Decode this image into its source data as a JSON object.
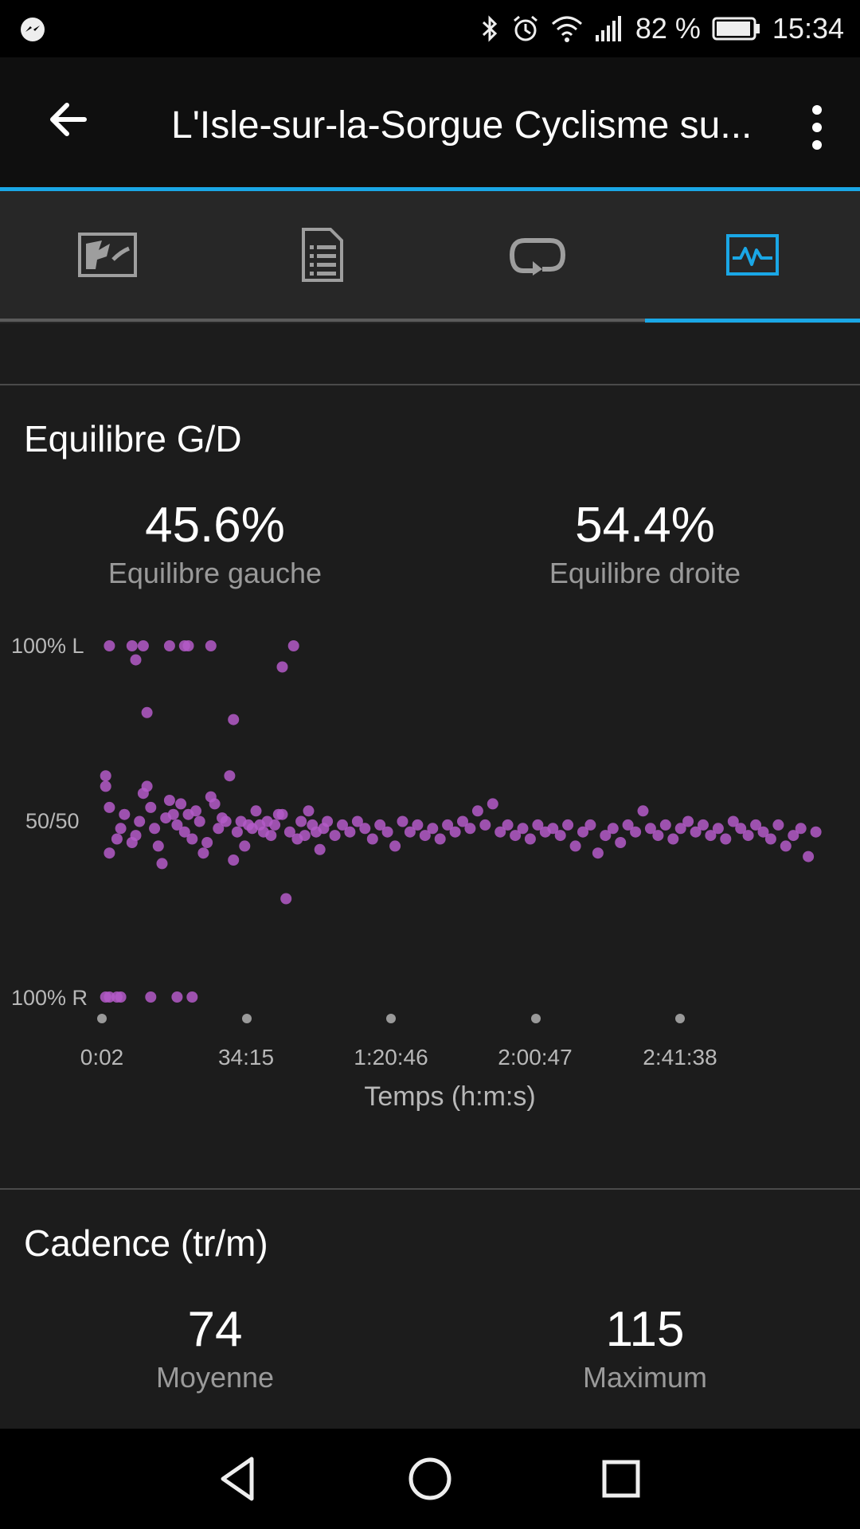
{
  "status_bar": {
    "battery_percent": "82 %",
    "time": "15:34",
    "icons": [
      "messenger-icon",
      "bluetooth-icon",
      "alarm-icon",
      "wifi-icon",
      "signal-icon",
      "battery-icon"
    ]
  },
  "app_bar": {
    "title": "L'Isle-sur-la-Sorgue Cyclisme su..."
  },
  "tabs": [
    {
      "icon": "map-icon"
    },
    {
      "icon": "details-icon"
    },
    {
      "icon": "laps-icon"
    },
    {
      "icon": "charts-icon",
      "active": true
    }
  ],
  "balance": {
    "title": "Equilibre G/D",
    "left_value": "45.6%",
    "left_label": "Equilibre gauche",
    "right_value": "54.4%",
    "right_label": "Equilibre droite"
  },
  "cadence": {
    "title": "Cadence (tr/m)",
    "avg_value": "74",
    "avg_label": "Moyenne",
    "max_value": "115",
    "max_label": "Maximum"
  },
  "colors": {
    "accent": "#1aa7e6",
    "point": "#b45bc8"
  },
  "chart_data": {
    "type": "scatter",
    "xlabel": "Temps (h:m:s)",
    "x_ticks": [
      "0:02",
      "34:15",
      "1:20:46",
      "2:00:47",
      "2:41:38"
    ],
    "y_ticks": [
      "100% L",
      "50/50",
      "100% R"
    ],
    "x_range_minutes": [
      0,
      192
    ],
    "ylim": [
      0,
      100
    ],
    "series": [
      {
        "values": [
          {
            "x": 2,
            "y": 100
          },
          {
            "x": 8,
            "y": 100
          },
          {
            "x": 11,
            "y": 100
          },
          {
            "x": 18,
            "y": 100
          },
          {
            "x": 22,
            "y": 100
          },
          {
            "x": 23,
            "y": 100
          },
          {
            "x": 29,
            "y": 100
          },
          {
            "x": 51,
            "y": 100
          },
          {
            "x": 9,
            "y": 96
          },
          {
            "x": 12,
            "y": 81
          },
          {
            "x": 35,
            "y": 79
          },
          {
            "x": 48,
            "y": 94
          },
          {
            "x": 48,
            "y": 52
          },
          {
            "x": 1,
            "y": 63
          },
          {
            "x": 1,
            "y": 60
          },
          {
            "x": 2,
            "y": 54
          },
          {
            "x": 2,
            "y": 41
          },
          {
            "x": 4,
            "y": 45
          },
          {
            "x": 5,
            "y": 48
          },
          {
            "x": 6,
            "y": 52
          },
          {
            "x": 8,
            "y": 44
          },
          {
            "x": 9,
            "y": 46
          },
          {
            "x": 10,
            "y": 50
          },
          {
            "x": 11,
            "y": 58
          },
          {
            "x": 12,
            "y": 60
          },
          {
            "x": 13,
            "y": 54
          },
          {
            "x": 14,
            "y": 48
          },
          {
            "x": 15,
            "y": 43
          },
          {
            "x": 16,
            "y": 38
          },
          {
            "x": 17,
            "y": 51
          },
          {
            "x": 18,
            "y": 56
          },
          {
            "x": 19,
            "y": 52
          },
          {
            "x": 20,
            "y": 49
          },
          {
            "x": 21,
            "y": 55
          },
          {
            "x": 22,
            "y": 47
          },
          {
            "x": 23,
            "y": 52
          },
          {
            "x": 24,
            "y": 45
          },
          {
            "x": 25,
            "y": 53
          },
          {
            "x": 26,
            "y": 50
          },
          {
            "x": 27,
            "y": 41
          },
          {
            "x": 28,
            "y": 44
          },
          {
            "x": 29,
            "y": 57
          },
          {
            "x": 30,
            "y": 55
          },
          {
            "x": 31,
            "y": 48
          },
          {
            "x": 32,
            "y": 51
          },
          {
            "x": 33,
            "y": 50
          },
          {
            "x": 34,
            "y": 63
          },
          {
            "x": 35,
            "y": 39
          },
          {
            "x": 36,
            "y": 47
          },
          {
            "x": 37,
            "y": 50
          },
          {
            "x": 38,
            "y": 43
          },
          {
            "x": 39,
            "y": 49
          },
          {
            "x": 40,
            "y": 48
          },
          {
            "x": 41,
            "y": 53
          },
          {
            "x": 42,
            "y": 49
          },
          {
            "x": 43,
            "y": 47
          },
          {
            "x": 44,
            "y": 50
          },
          {
            "x": 45,
            "y": 46
          },
          {
            "x": 46,
            "y": 49
          },
          {
            "x": 47,
            "y": 52
          },
          {
            "x": 49,
            "y": 28
          },
          {
            "x": 50,
            "y": 47
          },
          {
            "x": 52,
            "y": 45
          },
          {
            "x": 53,
            "y": 50
          },
          {
            "x": 54,
            "y": 46
          },
          {
            "x": 55,
            "y": 53
          },
          {
            "x": 56,
            "y": 49
          },
          {
            "x": 57,
            "y": 47
          },
          {
            "x": 58,
            "y": 42
          },
          {
            "x": 59,
            "y": 48
          },
          {
            "x": 60,
            "y": 50
          },
          {
            "x": 62,
            "y": 46
          },
          {
            "x": 64,
            "y": 49
          },
          {
            "x": 66,
            "y": 47
          },
          {
            "x": 68,
            "y": 50
          },
          {
            "x": 70,
            "y": 48
          },
          {
            "x": 72,
            "y": 45
          },
          {
            "x": 74,
            "y": 49
          },
          {
            "x": 76,
            "y": 47
          },
          {
            "x": 78,
            "y": 43
          },
          {
            "x": 80,
            "y": 50
          },
          {
            "x": 82,
            "y": 47
          },
          {
            "x": 84,
            "y": 49
          },
          {
            "x": 86,
            "y": 46
          },
          {
            "x": 88,
            "y": 48
          },
          {
            "x": 90,
            "y": 45
          },
          {
            "x": 92,
            "y": 49
          },
          {
            "x": 94,
            "y": 47
          },
          {
            "x": 96,
            "y": 50
          },
          {
            "x": 98,
            "y": 48
          },
          {
            "x": 100,
            "y": 53
          },
          {
            "x": 102,
            "y": 49
          },
          {
            "x": 104,
            "y": 55
          },
          {
            "x": 106,
            "y": 47
          },
          {
            "x": 108,
            "y": 49
          },
          {
            "x": 110,
            "y": 46
          },
          {
            "x": 112,
            "y": 48
          },
          {
            "x": 114,
            "y": 45
          },
          {
            "x": 116,
            "y": 49
          },
          {
            "x": 118,
            "y": 47
          },
          {
            "x": 120,
            "y": 48
          },
          {
            "x": 122,
            "y": 46
          },
          {
            "x": 124,
            "y": 49
          },
          {
            "x": 126,
            "y": 43
          },
          {
            "x": 128,
            "y": 47
          },
          {
            "x": 130,
            "y": 49
          },
          {
            "x": 132,
            "y": 41
          },
          {
            "x": 134,
            "y": 46
          },
          {
            "x": 136,
            "y": 48
          },
          {
            "x": 138,
            "y": 44
          },
          {
            "x": 140,
            "y": 49
          },
          {
            "x": 142,
            "y": 47
          },
          {
            "x": 144,
            "y": 53
          },
          {
            "x": 146,
            "y": 48
          },
          {
            "x": 148,
            "y": 46
          },
          {
            "x": 150,
            "y": 49
          },
          {
            "x": 152,
            "y": 45
          },
          {
            "x": 154,
            "y": 48
          },
          {
            "x": 156,
            "y": 50
          },
          {
            "x": 158,
            "y": 47
          },
          {
            "x": 160,
            "y": 49
          },
          {
            "x": 162,
            "y": 46
          },
          {
            "x": 164,
            "y": 48
          },
          {
            "x": 166,
            "y": 45
          },
          {
            "x": 168,
            "y": 50
          },
          {
            "x": 170,
            "y": 48
          },
          {
            "x": 172,
            "y": 46
          },
          {
            "x": 174,
            "y": 49
          },
          {
            "x": 176,
            "y": 47
          },
          {
            "x": 178,
            "y": 45
          },
          {
            "x": 180,
            "y": 49
          },
          {
            "x": 182,
            "y": 43
          },
          {
            "x": 184,
            "y": 46
          },
          {
            "x": 186,
            "y": 48
          },
          {
            "x": 188,
            "y": 40
          },
          {
            "x": 190,
            "y": 47
          },
          {
            "x": 1,
            "y": 0
          },
          {
            "x": 2,
            "y": 0
          },
          {
            "x": 4,
            "y": 0
          },
          {
            "x": 5,
            "y": 0
          },
          {
            "x": 13,
            "y": 0
          },
          {
            "x": 20,
            "y": 0
          },
          {
            "x": 24,
            "y": 0
          }
        ]
      }
    ]
  }
}
